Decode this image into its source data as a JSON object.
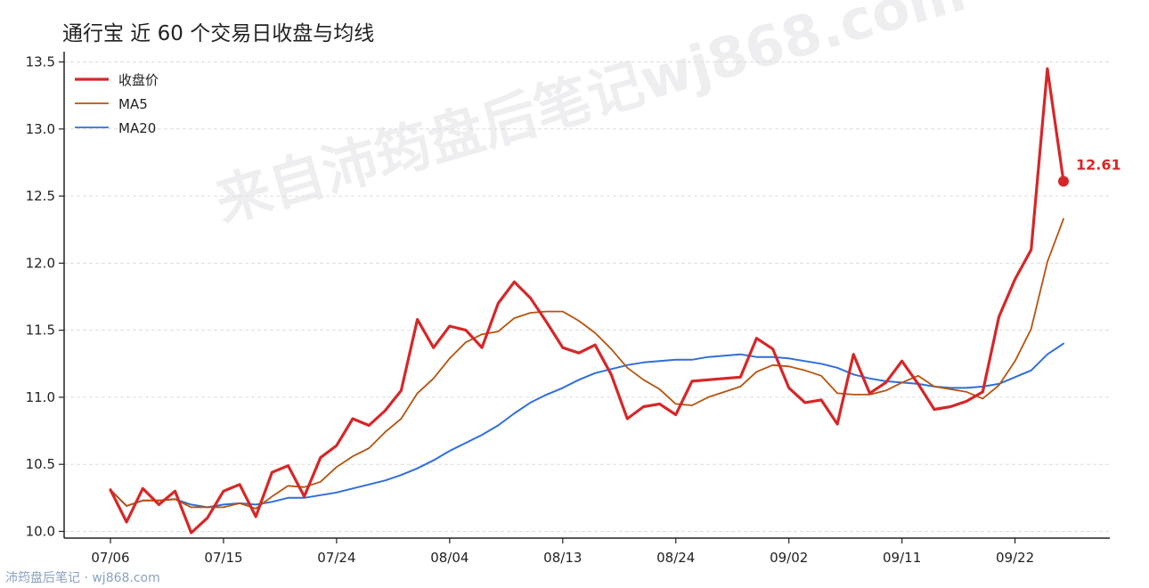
{
  "title": "通行宝 近 60 个交易日收盘与均线",
  "footer": "沛筠盘后笔记 · wj868.com",
  "watermark": "来自沛筠盘后笔记wj868.com",
  "colors": {
    "close": "#d62728",
    "ma5": "#b5540f",
    "ma20": "#2f6fd6",
    "grid": "#dddddd"
  },
  "chart_data": {
    "type": "line",
    "title": "通行宝 近 60 个交易日收盘与均线",
    "xlabel": "",
    "ylabel": "",
    "ylim": [
      9.95,
      13.55
    ],
    "yticks": [
      10.0,
      10.5,
      11.0,
      11.5,
      12.0,
      12.5,
      13.0,
      13.5
    ],
    "xticks": [
      "07/06",
      "07/15",
      "07/24",
      "08/04",
      "08/13",
      "08/24",
      "09/02",
      "09/11",
      "09/22"
    ],
    "xtick_index": [
      0,
      7,
      14,
      21,
      28,
      35,
      42,
      49,
      56
    ],
    "legend_position": "top-left",
    "grid": "horizontal dashed",
    "end_label": "12.61",
    "series": [
      {
        "name": "收盘价",
        "key": "close",
        "values": [
          10.31,
          10.07,
          10.32,
          10.2,
          10.3,
          9.99,
          10.1,
          10.3,
          10.35,
          10.11,
          10.44,
          10.49,
          10.26,
          10.55,
          10.64,
          10.84,
          10.79,
          10.9,
          11.05,
          11.58,
          11.37,
          11.53,
          11.5,
          11.37,
          11.7,
          11.86,
          11.74,
          11.56,
          11.37,
          11.33,
          11.39,
          11.17,
          10.84,
          10.93,
          10.95,
          10.87,
          11.12,
          11.13,
          11.14,
          11.15,
          11.44,
          11.36,
          11.07,
          10.96,
          10.98,
          10.8,
          11.32,
          11.03,
          11.11,
          11.27,
          11.1,
          10.91,
          10.93,
          10.97,
          11.04,
          11.6,
          11.88,
          12.1,
          13.45,
          12.61
        ]
      },
      {
        "name": "MA5",
        "key": "ma5",
        "values": [
          10.31,
          10.19,
          10.23,
          10.23,
          10.24,
          10.18,
          10.18,
          10.18,
          10.21,
          10.17,
          10.26,
          10.34,
          10.33,
          10.37,
          10.48,
          10.56,
          10.62,
          10.74,
          10.84,
          11.03,
          11.14,
          11.29,
          11.41,
          11.47,
          11.49,
          11.59,
          11.63,
          11.64,
          11.64,
          11.57,
          11.48,
          11.36,
          11.22,
          11.13,
          11.06,
          10.95,
          10.94,
          11.0,
          11.04,
          11.08,
          11.19,
          11.24,
          11.23,
          11.2,
          11.16,
          11.03,
          11.02,
          11.02,
          11.05,
          11.11,
          11.16,
          11.08,
          11.06,
          11.04,
          10.99,
          11.09,
          11.27,
          11.51,
          12.01,
          12.33
        ]
      },
      {
        "name": "MA20",
        "key": "ma20",
        "values": [
          10.31,
          10.19,
          10.23,
          10.23,
          10.24,
          10.2,
          10.18,
          10.2,
          10.21,
          10.2,
          10.22,
          10.25,
          10.25,
          10.27,
          10.29,
          10.32,
          10.35,
          10.38,
          10.42,
          10.47,
          10.53,
          10.6,
          10.66,
          10.72,
          10.79,
          10.88,
          10.96,
          11.02,
          11.07,
          11.13,
          11.18,
          11.21,
          11.24,
          11.26,
          11.27,
          11.28,
          11.28,
          11.3,
          11.31,
          11.32,
          11.3,
          11.3,
          11.29,
          11.27,
          11.25,
          11.22,
          11.17,
          11.14,
          11.12,
          11.11,
          11.1,
          11.08,
          11.07,
          11.07,
          11.08,
          11.1,
          11.15,
          11.2,
          11.32,
          11.4
        ]
      }
    ]
  }
}
